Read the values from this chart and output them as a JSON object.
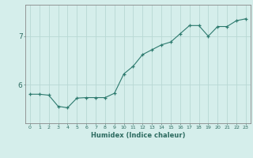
{
  "x": [
    0,
    1,
    2,
    3,
    4,
    5,
    6,
    7,
    8,
    9,
    10,
    11,
    12,
    13,
    14,
    15,
    16,
    17,
    18,
    19,
    20,
    21,
    22,
    23
  ],
  "y": [
    5.8,
    5.8,
    5.78,
    5.55,
    5.52,
    5.72,
    5.73,
    5.73,
    5.73,
    5.82,
    6.22,
    6.38,
    6.62,
    6.72,
    6.82,
    6.88,
    7.05,
    7.22,
    7.22,
    7.0,
    7.2,
    7.2,
    7.32,
    7.36
  ],
  "line_color": "#2d7a6e",
  "marker_color": "#2d7a6e",
  "bg_color": "#d5eeeb",
  "grid_color": "#b8d8d4",
  "axis_color": "#888888",
  "xlabel": "Humidex (Indice chaleur)",
  "yticks": [
    6,
    7
  ],
  "ylim": [
    5.2,
    7.65
  ],
  "xlim": [
    -0.5,
    23.5
  ],
  "font_color": "#2d6b60",
  "xlabel_fontsize": 6.0,
  "xtick_fontsize": 4.5,
  "ytick_fontsize": 6.5
}
